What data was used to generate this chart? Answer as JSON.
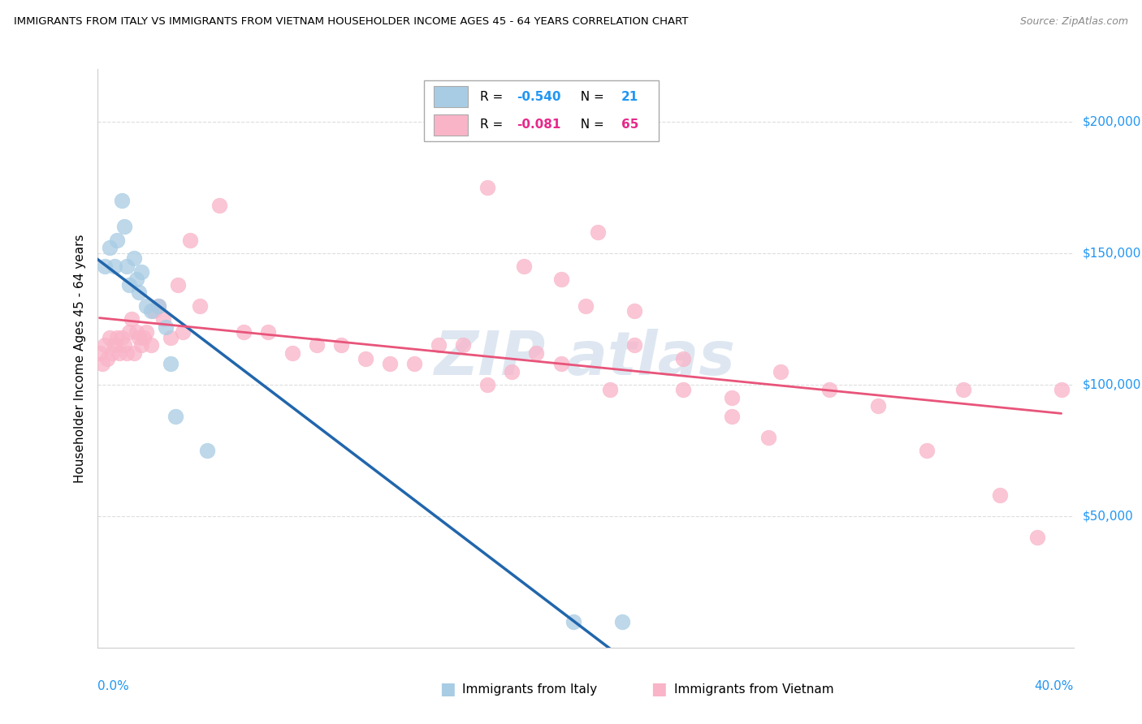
{
  "title": "IMMIGRANTS FROM ITALY VS IMMIGRANTS FROM VIETNAM HOUSEHOLDER INCOME AGES 45 - 64 YEARS CORRELATION CHART",
  "source": "Source: ZipAtlas.com",
  "ylabel": "Householder Income Ages 45 - 64 years",
  "legend_italy": "Immigrants from Italy",
  "legend_vietnam": "Immigrants from Vietnam",
  "r_italy": "-0.540",
  "n_italy": "21",
  "r_vietnam": "-0.081",
  "n_vietnam": "65",
  "xlim": [
    0.0,
    0.4
  ],
  "ylim": [
    0,
    220000
  ],
  "color_italy": "#a8cce4",
  "color_vietnam": "#f9b4c8",
  "color_italy_line": "#2166ac",
  "color_vietnam_line": "#e8547a",
  "color_dashed": "#bbbbbb",
  "italy_x": [
    0.003,
    0.005,
    0.007,
    0.008,
    0.01,
    0.011,
    0.012,
    0.013,
    0.015,
    0.016,
    0.017,
    0.018,
    0.02,
    0.022,
    0.025,
    0.028,
    0.03,
    0.032,
    0.045,
    0.195,
    0.215
  ],
  "italy_y": [
    145000,
    152000,
    145000,
    155000,
    170000,
    160000,
    145000,
    138000,
    148000,
    140000,
    135000,
    143000,
    130000,
    128000,
    130000,
    122000,
    108000,
    88000,
    75000,
    10000,
    10000
  ],
  "vietnam_x": [
    0.001,
    0.002,
    0.003,
    0.004,
    0.005,
    0.006,
    0.007,
    0.008,
    0.009,
    0.01,
    0.011,
    0.012,
    0.013,
    0.014,
    0.015,
    0.016,
    0.017,
    0.018,
    0.019,
    0.02,
    0.022,
    0.023,
    0.025,
    0.027,
    0.03,
    0.033,
    0.035,
    0.038,
    0.042,
    0.05,
    0.06,
    0.07,
    0.08,
    0.09,
    0.1,
    0.11,
    0.12,
    0.13,
    0.14,
    0.15,
    0.16,
    0.17,
    0.18,
    0.19,
    0.2,
    0.21,
    0.22,
    0.24,
    0.26,
    0.28,
    0.3,
    0.32,
    0.34,
    0.355,
    0.37,
    0.385,
    0.395,
    0.16,
    0.175,
    0.19,
    0.205,
    0.22,
    0.24,
    0.26,
    0.275
  ],
  "vietnam_y": [
    112000,
    108000,
    115000,
    110000,
    118000,
    112000,
    115000,
    118000,
    112000,
    118000,
    115000,
    112000,
    120000,
    125000,
    112000,
    120000,
    118000,
    115000,
    118000,
    120000,
    115000,
    128000,
    130000,
    125000,
    118000,
    138000,
    120000,
    155000,
    130000,
    168000,
    120000,
    120000,
    112000,
    115000,
    115000,
    110000,
    108000,
    108000,
    115000,
    115000,
    100000,
    105000,
    112000,
    108000,
    130000,
    98000,
    115000,
    98000,
    95000,
    105000,
    98000,
    92000,
    75000,
    98000,
    58000,
    42000,
    98000,
    175000,
    145000,
    140000,
    158000,
    128000,
    110000,
    88000,
    80000
  ]
}
